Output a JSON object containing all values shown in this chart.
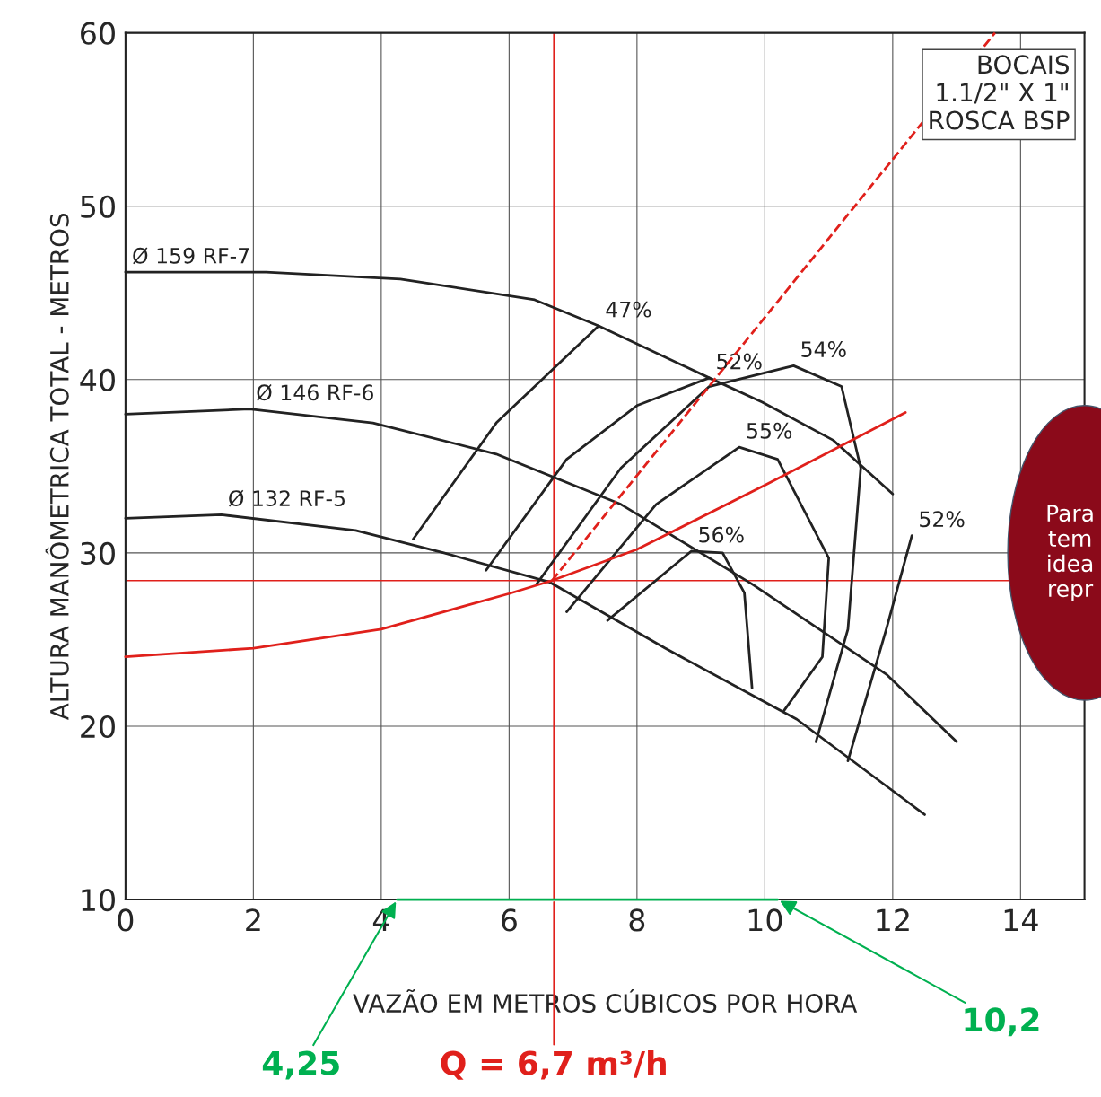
{
  "chart_data": {
    "type": "line",
    "xlabel": "VAZÃO EM METROS CÚBICOS POR HORA",
    "ylabel": "ALTURA MANÔMETRICA TOTAL - METROS",
    "xlim": [
      0,
      15
    ],
    "ylim": [
      10,
      60
    ],
    "xticks": [
      0,
      2,
      4,
      6,
      8,
      10,
      12,
      14
    ],
    "yticks": [
      10,
      20,
      30,
      40,
      50,
      60
    ],
    "grid": true,
    "marker": "none",
    "series": [
      {
        "name": "Ø 159 RF-7",
        "color": "#222222",
        "x": [
          0,
          2.2,
          4.3,
          6.4,
          7.4,
          9.13,
          9.96,
          11.07,
          12.0
        ],
        "values": [
          46.2,
          46.2,
          45.8,
          44.6,
          43.1,
          40.1,
          38.7,
          36.5,
          33.4
        ]
      },
      {
        "name": "Ø 146 RF-6",
        "color": "#222222",
        "x": [
          0,
          1.94,
          3.87,
          5.8,
          7.75,
          9.8,
          11.9,
          13.0
        ],
        "values": [
          38.0,
          38.3,
          37.5,
          35.7,
          32.8,
          28.2,
          23.0,
          19.1
        ]
      },
      {
        "name": "Ø 132 RF-5",
        "color": "#222222",
        "x": [
          0,
          1.5,
          3.6,
          4.98,
          6.64,
          8.44,
          10.5,
          12.5
        ],
        "values": [
          32.0,
          32.2,
          31.3,
          30.0,
          28.3,
          24.5,
          20.4,
          14.9
        ]
      },
      {
        "name": "47%",
        "color": "#222222",
        "x": [
          4.5,
          5.8,
          7.4
        ],
        "values": [
          30.8,
          37.5,
          43.1
        ]
      },
      {
        "name": "52%",
        "color": "#222222",
        "x": [
          5.64,
          6.9,
          8.0,
          9.13
        ],
        "values": [
          29.0,
          35.4,
          38.5,
          40.1
        ]
      },
      {
        "name": "54%",
        "color": "#222222",
        "x": [
          6.43,
          7.75,
          9.13,
          10.45,
          11.2,
          11.5,
          11.3,
          10.8
        ],
        "values": [
          28.2,
          34.9,
          39.6,
          40.8,
          39.6,
          34.9,
          25.6,
          19.1
        ]
      },
      {
        "name": "55%",
        "color": "#222222",
        "x": [
          6.9,
          8.3,
          9.6,
          10.2,
          11.0,
          10.9,
          10.3
        ],
        "values": [
          26.6,
          32.8,
          36.1,
          35.4,
          29.7,
          24.0,
          20.9
        ]
      },
      {
        "name": "56%",
        "color": "#222222",
        "x": [
          7.54,
          8.85,
          9.34,
          9.68,
          9.8
        ],
        "values": [
          26.1,
          30.1,
          30.0,
          27.7,
          22.2
        ]
      },
      {
        "name": "52%",
        "color": "#222222",
        "x": [
          12.3,
          11.9,
          11.3
        ],
        "values": [
          31.0,
          25.6,
          18.0
        ]
      },
      {
        "color": "#e0201b",
        "x": [
          0,
          2.0,
          4.0,
          6.0,
          6.67,
          8.0,
          10.0,
          12.2
        ],
        "values": [
          24.0,
          24.5,
          25.6,
          27.65,
          28.4,
          30.2,
          33.9,
          38.1
        ]
      },
      {
        "color": "#e0201b",
        "line_style": "dashed",
        "x": [
          6.67,
          13.6
        ],
        "values": [
          28.4,
          60
        ]
      },
      {
        "color": "#00b050",
        "x": [
          4.25,
          10.2
        ],
        "values": [
          10,
          10
        ]
      }
    ],
    "ref_lines": [
      {
        "axis": "y",
        "value": 28.4,
        "color": "#e0201b"
      },
      {
        "axis": "x",
        "value": 6.7,
        "color": "#e0201b"
      }
    ],
    "annotations": [
      "BOCAIS\n1.1/2\" X 1\"\nROSCA BSP",
      "Para\ntem\nidea\nrepr",
      {
        "text": "4,25",
        "x": 4.25,
        "y": 10
      },
      {
        "text": "10,2",
        "x": 10.2,
        "y": 10
      },
      {
        "text": "Q = 6,7 m³/h",
        "x": 6.7,
        "y": 10
      }
    ]
  }
}
